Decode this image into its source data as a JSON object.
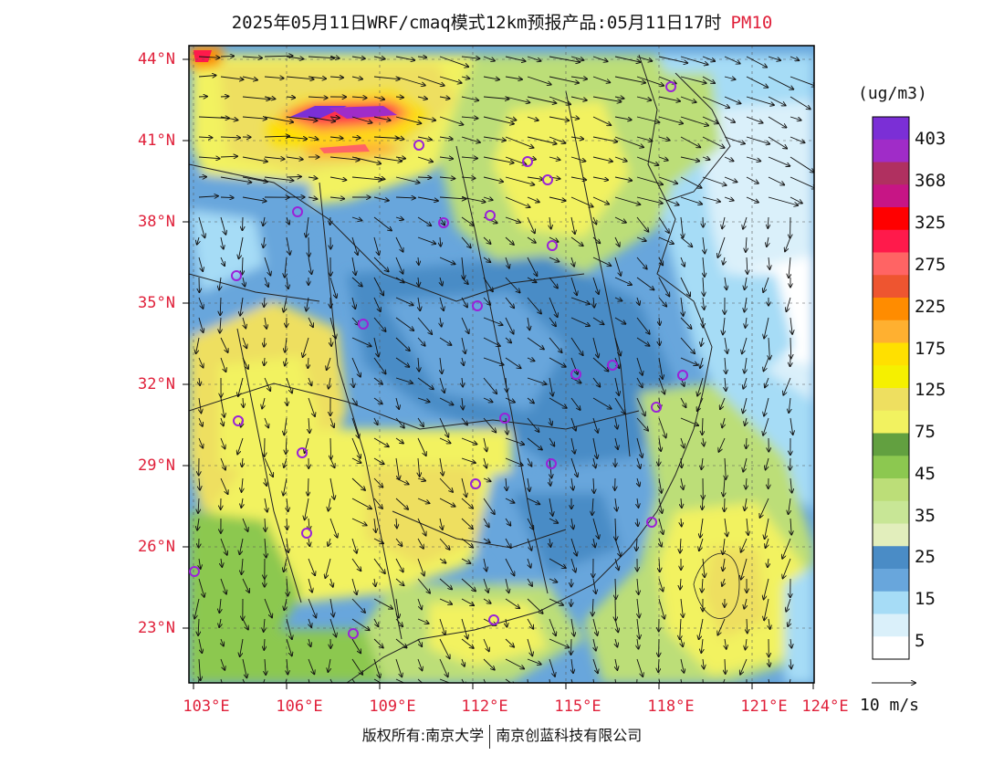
{
  "title": {
    "main": "2025年05月11日WRF/cmaq模式12km预报产品:05月11日17时",
    "pollutant": "PM10"
  },
  "map": {
    "lat_labels": [
      "44°N",
      "41°N",
      "38°N",
      "35°N",
      "32°N",
      "29°N",
      "26°N",
      "23°N"
    ],
    "lon_labels": [
      "103°E",
      "106°E",
      "109°E",
      "112°E",
      "115°E",
      "118°E",
      "121°E",
      "124°E"
    ],
    "label_color": "#e0203a",
    "station_marker_color": "#9a22d8"
  },
  "legend": {
    "unit": "(ug/m3)",
    "colors": [
      "#7b2fd6",
      "#a02cc8",
      "#b03060",
      "#c71585",
      "#ff0000",
      "#ff1a4b",
      "#ff6464",
      "#ee5530",
      "#ff8c00",
      "#ffb030",
      "#ffe000",
      "#f5f000",
      "#eedf60",
      "#f2f260",
      "#62a040",
      "#8cc850",
      "#bcde78",
      "#c8e696",
      "#e2eebc",
      "#4a8cc6",
      "#68a6dc",
      "#a6dcf6",
      "#daf0fa",
      "#ffffff"
    ],
    "labels": [
      "403",
      "368",
      "325",
      "275",
      "225",
      "175",
      "125",
      "75",
      "45",
      "35",
      "25",
      "15",
      "5"
    ]
  },
  "wind_reference": {
    "label": "10 m/s"
  },
  "copyright": {
    "left": "版权所有:南京大学",
    "right": "南京创蓝科技有限公司"
  }
}
